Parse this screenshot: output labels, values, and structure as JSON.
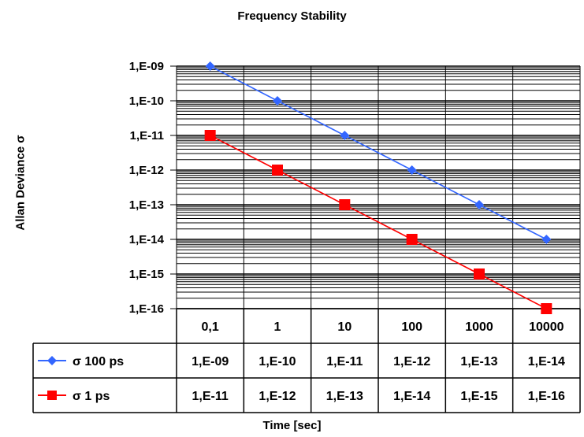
{
  "chart_data": {
    "type": "line",
    "title": "Frequency Stability",
    "xlabel": "Time [sec]",
    "ylabel": "Allan Deviance  σ",
    "categories": [
      "0,1",
      "1",
      "10",
      "100",
      "1000",
      "10000"
    ],
    "y_scale": "log",
    "ylim": [
      1e-16,
      1e-09
    ],
    "y_tick_labels": [
      "1,E-09",
      "1,E-10",
      "1,E-11",
      "1,E-12",
      "1,E-13",
      "1,E-14",
      "1,E-15",
      "1,E-16"
    ],
    "grid": true,
    "legend": "data-table",
    "series": [
      {
        "name": "σ 100 ps",
        "color": "#3366FF",
        "marker": "diamond",
        "values": [
          1e-09,
          1e-10,
          1e-11,
          1e-12,
          1e-13,
          1e-14
        ],
        "value_labels": [
          "1,E-09",
          "1,E-10",
          "1,E-11",
          "1,E-12",
          "1,E-13",
          "1,E-14"
        ]
      },
      {
        "name": "σ 1 ps",
        "color": "#FF0000",
        "marker": "square",
        "values": [
          1e-11,
          1e-12,
          1e-13,
          1e-14,
          1e-15,
          1e-16
        ],
        "value_labels": [
          "1,E-11",
          "1,E-12",
          "1,E-13",
          "1,E-14",
          "1,E-15",
          "1,E-16"
        ]
      }
    ]
  }
}
